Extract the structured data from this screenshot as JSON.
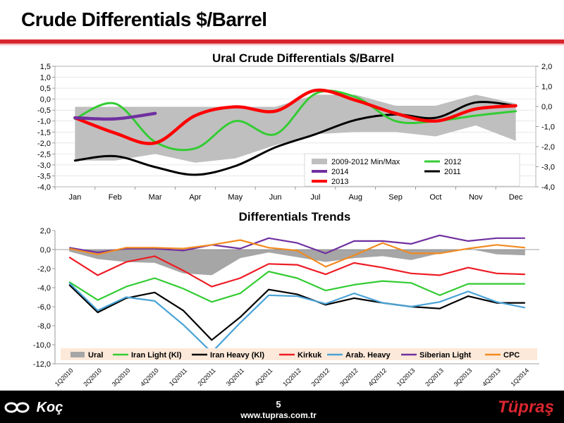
{
  "slide": {
    "title": "Crude Differentials $/Barrel",
    "page_number": "5",
    "website": "www.tupras.com.tr",
    "logo_left": "Koç",
    "logo_right": "Tüpraş"
  },
  "colors": {
    "accent": "#d8262e",
    "minmax": "#bfbfbf",
    "y2012": "#33cc33",
    "y2014": "#7030a0",
    "y2011": "#000000",
    "y2013": "#ff0000",
    "ural": "#a6a6a6",
    "iran_light": "#33cc33",
    "iran_heavy": "#000000",
    "kirkuk": "#ee1c25",
    "arab_heavy": "#4aa3d6",
    "siberian_light": "#7030a0",
    "cpc": "#f28a1e",
    "legend_bg": "#fde9d9"
  },
  "chart_data": [
    {
      "type": "line",
      "title": "Ural Crude Differentials $/Barrel",
      "categories": [
        "Jan",
        "Feb",
        "Mar",
        "Apr",
        "May",
        "Jun",
        "Jul",
        "Aug",
        "Sep",
        "Oct",
        "Nov",
        "Dec"
      ],
      "ylim": [
        -4.0,
        1.5
      ],
      "yticks": [
        "1,5",
        "1,0",
        "0,5",
        "0,0",
        "-0,5",
        "-1,0",
        "-1,5",
        "-2,0",
        "-2,5",
        "-3,0",
        "-3,5",
        "-4,0"
      ],
      "y2lim": [
        -4.0,
        2.0
      ],
      "y2ticks": [
        "2,0",
        "1,0",
        "0,0",
        "-1,0",
        "-2,0",
        "-3,0",
        "-4,0"
      ],
      "band": {
        "name": "2009-2012 Min/Max",
        "min": [
          -2.8,
          -2.8,
          -2.5,
          -2.9,
          -2.7,
          -2.1,
          -1.6,
          -1.5,
          -1.5,
          -1.7,
          -1.2,
          -1.9
        ],
        "max": [
          -0.35,
          -0.35,
          -0.35,
          -0.35,
          -0.35,
          -0.35,
          0.2,
          0.2,
          -0.3,
          -0.3,
          0.2,
          -0.2
        ]
      },
      "series": [
        {
          "name": "2012",
          "color": "#33cc33",
          "width": 3,
          "values": [
            -0.9,
            -0.2,
            -1.95,
            -2.25,
            -1.0,
            -1.6,
            0.25,
            0.1,
            -1.0,
            -1.0,
            -0.75,
            -0.55
          ]
        },
        {
          "name": "2014",
          "color": "#7030a0",
          "width": 4.5,
          "values": [
            -0.85,
            -0.9,
            -0.65,
            null,
            null,
            null,
            null,
            null,
            null,
            null,
            null,
            null
          ]
        },
        {
          "name": "2011",
          "color": "#000000",
          "width": 3,
          "values": [
            -2.8,
            -2.6,
            -3.1,
            -3.45,
            -3.05,
            -2.2,
            -1.6,
            -0.95,
            -0.7,
            -0.85,
            -0.15,
            -0.3
          ]
        },
        {
          "name": "2013",
          "color": "#ff0000",
          "width": 4.5,
          "values": [
            -0.85,
            -1.55,
            -2.0,
            -0.75,
            -0.35,
            -0.55,
            0.4,
            -0.05,
            -0.65,
            -1.0,
            -0.45,
            -0.3
          ]
        }
      ],
      "legend": [
        "2009-2012 Min/Max",
        "2012",
        "2014",
        "2011",
        "2013"
      ]
    },
    {
      "type": "line",
      "title": "Differentials Trends",
      "categories": [
        "1Q2010",
        "2Q2010",
        "3Q2010",
        "4Q2010",
        "1Q2011",
        "2Q2011",
        "3Q2011",
        "4Q2011",
        "1Q2012",
        "2Q2012",
        "3Q2012",
        "4Q2012",
        "1Q2013",
        "2Q2013",
        "3Q2013",
        "4Q2013",
        "1Q2014"
      ],
      "ylim": [
        -12.0,
        2.0
      ],
      "yticks": [
        "2,0",
        "0,0",
        "-2,0",
        "-4,0",
        "-6,0",
        "-8,0",
        "-10,0",
        "-12,0"
      ],
      "area": {
        "name": "Ural",
        "color": "#a6a6a6",
        "values": [
          -0.2,
          -1.0,
          -1.3,
          -1.4,
          -2.5,
          -2.7,
          -0.9,
          -0.3,
          -0.8,
          -1.3,
          -0.9,
          -0.7,
          -1.1,
          -0.4,
          0.1,
          -0.5,
          -0.6
        ]
      },
      "series": [
        {
          "name": "Iran Light (Kl)",
          "color": "#33cc33",
          "values": [
            -3.4,
            -5.3,
            -3.9,
            -3.0,
            -4.1,
            -5.5,
            -4.6,
            -2.3,
            -3.0,
            -4.3,
            -3.7,
            -3.3,
            -3.5,
            -4.8,
            -3.6,
            -3.6,
            -3.6
          ]
        },
        {
          "name": "Iran Heavy (Kl)",
          "color": "#000000",
          "values": [
            -3.7,
            -6.6,
            -5.1,
            -4.5,
            -6.4,
            -9.5,
            -7.1,
            -4.2,
            -4.7,
            -5.8,
            -5.1,
            -5.6,
            -6.0,
            -6.2,
            -4.9,
            -5.6,
            -5.6
          ]
        },
        {
          "name": "Kirkuk",
          "color": "#ee1c25",
          "values": [
            -0.8,
            -2.7,
            -1.3,
            -0.7,
            -2.2,
            -3.9,
            -3.0,
            -1.5,
            -1.6,
            -2.6,
            -1.4,
            -1.9,
            -2.5,
            -2.7,
            -1.9,
            -2.5,
            -2.6
          ]
        },
        {
          "name": "Arab. Heavy",
          "color": "#4aa3d6",
          "values": [
            -3.5,
            -6.4,
            -5.0,
            -5.4,
            -7.9,
            -10.8,
            -7.7,
            -4.8,
            -4.9,
            -5.7,
            -4.6,
            -5.6,
            -6.0,
            -5.5,
            -4.4,
            -5.5,
            -6.1
          ]
        },
        {
          "name": "Siberian Light",
          "color": "#7030a0",
          "values": [
            0.2,
            -0.3,
            0.1,
            0.1,
            -0.1,
            0.5,
            0.1,
            1.2,
            0.7,
            -0.4,
            0.9,
            0.9,
            0.6,
            1.5,
            0.9,
            1.2,
            1.2
          ]
        },
        {
          "name": "CPC",
          "color": "#f28a1e",
          "values": [
            0.1,
            -0.5,
            0.2,
            0.2,
            0.1,
            0.5,
            1.0,
            0.2,
            -0.1,
            -1.8,
            -0.6,
            0.7,
            -0.4,
            -0.4,
            0.1,
            0.5,
            0.2
          ]
        }
      ],
      "legend": [
        "Ural",
        "Iran Light (Kl)",
        "Iran Heavy (Kl)",
        "Kirkuk",
        "Arab. Heavy",
        "Siberian Light",
        "CPC"
      ]
    }
  ]
}
